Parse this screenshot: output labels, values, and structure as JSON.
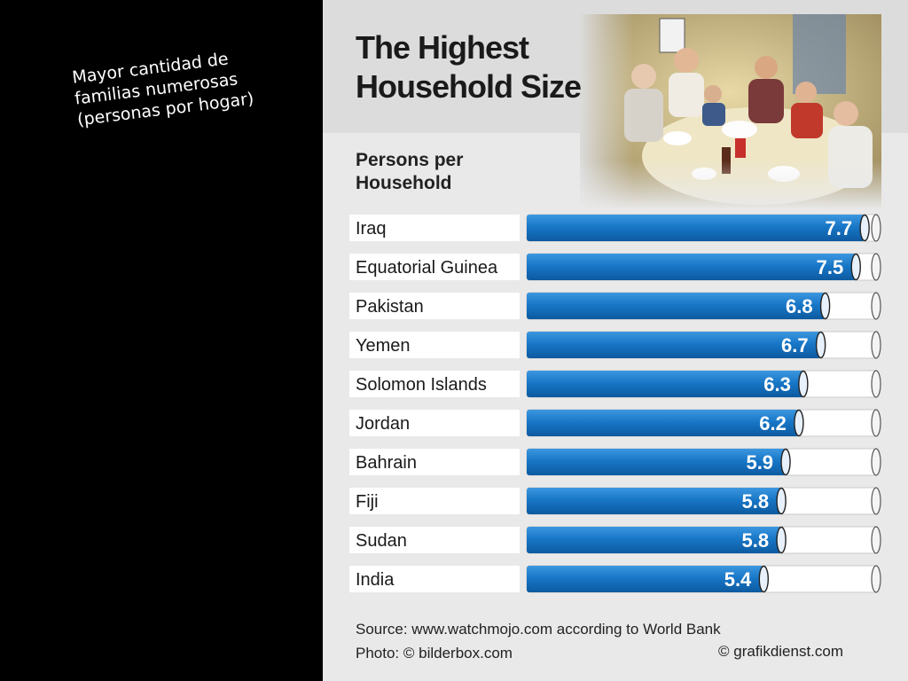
{
  "caption": {
    "line1": "Mayor cantidad de",
    "line2": "familias numerosas",
    "line3": "(personas por hogar)"
  },
  "graphic": {
    "title_line1": "The Highest",
    "title_line2": "Household Size",
    "subtitle_line1": "Persons per",
    "subtitle_line2": "Household",
    "source": "Source: www.watchmojo.com according to World Bank",
    "photo_credit": "Photo: © bilderbox.com",
    "grafik_credit": "© grafikdienst.com"
  },
  "colors": {
    "bar_blue": "#1877c7",
    "bar_blue_dark": "#0d5aa0",
    "label_bg": "#ffffff",
    "panel_bg": "#e9e9e9",
    "title_band": "#dcdcdc"
  },
  "chart_data": {
    "type": "bar",
    "orientation": "horizontal",
    "title": "The Highest Household Size",
    "ylabel": "Persons per Household",
    "categories": [
      "Iraq",
      "Equatorial Guinea",
      "Pakistan",
      "Yemen",
      "Solomon Islands",
      "Jordan",
      "Bahrain",
      "Fiji",
      "Sudan",
      "India"
    ],
    "values": [
      7.7,
      7.5,
      6.8,
      6.7,
      6.3,
      6.2,
      5.9,
      5.8,
      5.8,
      5.4
    ],
    "value_labels": [
      "7.7",
      "7.5",
      "6.8",
      "6.7",
      "6.3",
      "6.2",
      "5.9",
      "5.8",
      "5.8",
      "5.4"
    ],
    "xlim": [
      0,
      8
    ],
    "grid": false,
    "legend": "none"
  }
}
